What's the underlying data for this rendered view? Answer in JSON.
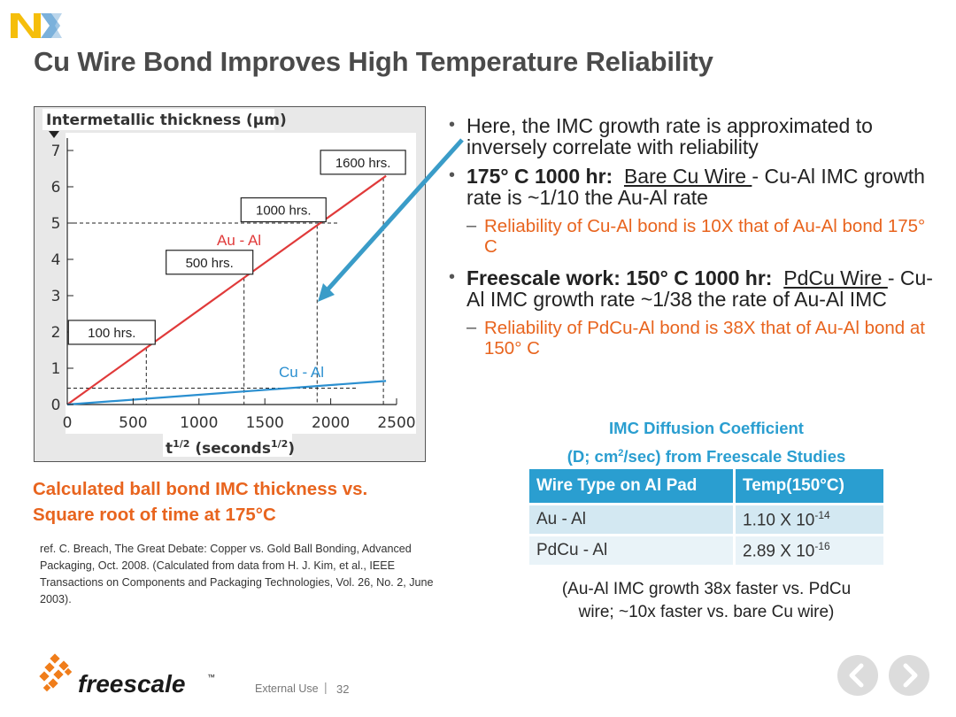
{
  "header": {
    "title": "Cu Wire Bond Improves High Temperature Reliability"
  },
  "brand": {
    "nxp_icon": "nxp-logo",
    "freescale_name": "freescale",
    "freescale_tm": "™",
    "colors": {
      "nxp_yellow": "#f5be0b",
      "nxp_blue": "#7bb1db",
      "nxp_green": "#c4d600",
      "accent_orange": "#e8641e",
      "accent_blue": "#2a9ed0"
    }
  },
  "chart_data": {
    "type": "line",
    "title": "",
    "ylabel": "Intermetallic thickness (µm)",
    "xlabel_base": "t",
    "xlabel_sup": "1/2",
    "xlabel_rest_a": " (seconds",
    "xlabel_rest_sup": "1/2",
    "xlabel_rest_b": ")",
    "xlim": [
      0,
      2500
    ],
    "ylim": [
      0,
      7
    ],
    "x_ticks": [
      "0",
      "500",
      "1000",
      "1500",
      "2000",
      "2500"
    ],
    "y_ticks": [
      "0",
      "1",
      "2",
      "3",
      "4",
      "5",
      "6",
      "7"
    ],
    "grid": false,
    "series": [
      {
        "name": "Au - Al",
        "color": "#e03a3a",
        "x": [
          0,
          2420
        ],
        "y": [
          0,
          6.3
        ]
      },
      {
        "name": "Cu - Al",
        "color": "#2a8fd0",
        "x": [
          0,
          2420
        ],
        "y": [
          0,
          0.65
        ]
      }
    ],
    "time_markers": [
      {
        "label": "100 hrs.",
        "x": 600
      },
      {
        "label": "500 hrs.",
        "x": 1342
      },
      {
        "label": "1000 hrs.",
        "x": 1897
      },
      {
        "label": "1600 hrs.",
        "x": 2400
      }
    ],
    "reference_lines": {
      "y_upper": 5.0,
      "y_lower": 0.45
    },
    "legend_placement": "inline"
  },
  "caption": {
    "line1": "Calculated ball bond IMC thickness vs.",
    "line2": "Square root of time at 175°C"
  },
  "reference": "ref.  C. Breach, The Great Debate: Copper vs. Gold Ball Bonding, Advanced Packaging, Oct. 2008.  (Calculated from data from H. J. Kim, et al., IEEE Transactions on Components and Packaging Technologies, Vol. 26, No. 2, June 2003).",
  "bullets": {
    "b1": "Here, the IMC growth rate is approximated to inversely correlate with reliability",
    "b2_bold": "175° C 1000 hr:",
    "b2_underline": "Bare Cu Wire ",
    "b2_rest": "- Cu-Al IMC growth rate is  ~1/10 the Au-Al rate",
    "s1": "Reliability of Cu-Al bond is 10X that of Au-Al bond 175° C",
    "b3_bold": "Freescale work:  150° C 1000 hr:",
    "b3_underline": "PdCu Wire ",
    "b3_rest": "- Cu-Al IMC growth rate ~1/38 the rate of Au-Al IMC",
    "s2": "Reliability of PdCu-Al bond is 38X that of Au-Al bond at 150° C",
    "bullet_mark": "•",
    "sub_mark": "–"
  },
  "imc_table": {
    "title_line1": "IMC Diffusion Coefficient",
    "title_line2a": "(D; cm",
    "title_line2_sup": "2",
    "title_line2b": "/sec) from Freescale Studies",
    "headers": [
      "Wire Type on Al Pad",
      "Temp(150°C)"
    ],
    "rows": [
      {
        "wire": "Au - Al",
        "mant": "1.10 X 10",
        "exp": "-14"
      },
      {
        "wire": "PdCu - Al",
        "mant": "2.89 X 10",
        "exp": "-16"
      }
    ],
    "note_line1": "(Au-Al IMC growth 38x faster vs. PdCu",
    "note_line2": "wire; ~10x faster  vs.  bare Cu wire)"
  },
  "footer": {
    "classification": "External Use",
    "separator": "|",
    "page_number": "32"
  },
  "nav": {
    "prev_icon": "chevron-left-icon",
    "next_icon": "chevron-right-icon"
  }
}
